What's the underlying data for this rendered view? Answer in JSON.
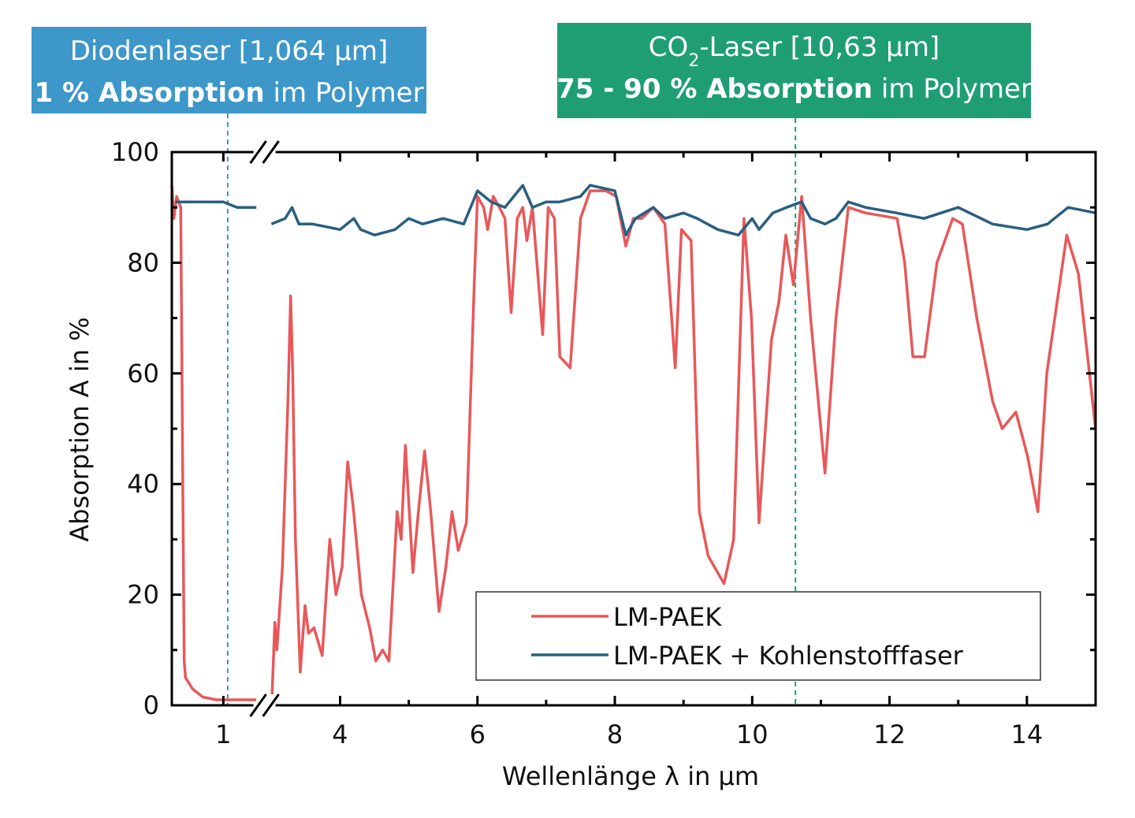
{
  "chart_data": {
    "type": "line",
    "xlabel": "Wellenlänge λ in µm",
    "ylabel": "Absorption A in %",
    "xlim": [
      0.25,
      15
    ],
    "x_break": [
      1.6,
      2.9
    ],
    "ylim": [
      0,
      100
    ],
    "xticks": [
      1,
      4,
      6,
      8,
      10,
      12,
      14
    ],
    "xminor": [
      5,
      7,
      9,
      11,
      13
    ],
    "yticks": [
      0,
      20,
      40,
      60,
      80,
      100
    ],
    "yminor": [
      10,
      30,
      50,
      70,
      90
    ],
    "legend": "lower right",
    "annotations": [
      {
        "x": 1.064,
        "color": "#3d97c9",
        "lines": [
          [
            "Diodenlaser [1,064 µm]"
          ],
          [
            "1 % Absorption",
            " im Polymer"
          ]
        ]
      },
      {
        "x": 10.63,
        "color": "#1f9e73",
        "lines": [
          [
            "CO",
            "2",
            "-Laser [10,63 µm]"
          ],
          [
            "75 - 90 % Absorption",
            " im Polymer"
          ]
        ]
      }
    ],
    "series": [
      {
        "name": "LM-PAEK",
        "color": "#e8585a",
        "x": [
          0.25,
          0.28,
          0.32,
          0.38,
          0.41,
          0.43,
          0.45,
          0.5,
          0.55,
          0.7,
          0.9,
          1.2,
          1.48,
          null,
          3.01,
          3.05,
          3.08,
          3.16,
          3.24,
          3.28,
          3.31,
          3.35,
          3.42,
          3.49,
          3.54,
          3.62,
          3.74,
          3.85,
          3.94,
          4.03,
          4.11,
          4.19,
          4.31,
          4.43,
          4.52,
          4.62,
          4.71,
          4.83,
          4.89,
          4.95,
          5.06,
          5.14,
          5.23,
          5.32,
          5.44,
          5.54,
          5.63,
          5.72,
          5.84,
          5.95,
          6.0,
          6.09,
          6.15,
          6.23,
          6.32,
          6.4,
          6.49,
          6.58,
          6.66,
          6.72,
          6.8,
          6.95,
          7.03,
          7.12,
          7.2,
          7.35,
          7.5,
          7.64,
          7.87,
          8.02,
          8.16,
          8.27,
          8.39,
          8.56,
          8.73,
          8.88,
          8.97,
          9.11,
          9.23,
          9.36,
          9.59,
          9.73,
          9.88,
          9.99,
          10.1,
          10.28,
          10.39,
          10.49,
          10.6,
          10.72,
          10.85,
          11.06,
          11.22,
          11.4,
          11.65,
          12.11,
          12.22,
          12.34,
          12.51,
          12.69,
          12.92,
          13.06,
          13.27,
          13.5,
          13.64,
          13.84,
          14.01,
          14.16,
          14.29,
          14.58,
          14.75,
          15
        ],
        "values": [
          94,
          88,
          92,
          90,
          40,
          8,
          5,
          4,
          3,
          1.5,
          1,
          1,
          1,
          null,
          2,
          15,
          10,
          25,
          55,
          74,
          60,
          30,
          6,
          18,
          13,
          14,
          9,
          30,
          20,
          25,
          44,
          36,
          20,
          14,
          8,
          10,
          8,
          35,
          30,
          47,
          24,
          35,
          46,
          35,
          17,
          25,
          35,
          28,
          33,
          75,
          92,
          90,
          86,
          92,
          90,
          88,
          71,
          88,
          90,
          84,
          90,
          67,
          90,
          88,
          63,
          61,
          88,
          93,
          93,
          92,
          83,
          88,
          88,
          90,
          87,
          61,
          86,
          84,
          35,
          27,
          22,
          30,
          88,
          70,
          33,
          66,
          73,
          85,
          76,
          92,
          70,
          42,
          70,
          90,
          89,
          88,
          80,
          63,
          63,
          80,
          88,
          87,
          70,
          55,
          50,
          53,
          45,
          35,
          60,
          85,
          78,
          50
        ]
      },
      {
        "name": "LM-PAEK + Kohlenstofffaser",
        "color": "#2a5f80",
        "x": [
          0.3,
          0.6,
          1.0,
          1.2,
          1.48,
          null,
          3.0,
          3.2,
          3.3,
          3.4,
          3.6,
          4.0,
          4.2,
          4.3,
          4.5,
          4.8,
          5.0,
          5.2,
          5.5,
          5.8,
          6.0,
          6.2,
          6.4,
          6.66,
          6.8,
          7.0,
          7.2,
          7.5,
          7.64,
          8.0,
          8.16,
          8.3,
          8.56,
          8.73,
          9.0,
          9.2,
          9.5,
          9.8,
          10.0,
          10.1,
          10.3,
          10.5,
          10.72,
          10.85,
          11.06,
          11.22,
          11.4,
          11.65,
          12.1,
          12.5,
          13.0,
          13.5,
          14.0,
          14.3,
          14.6,
          15
        ],
        "values": [
          91,
          91,
          91,
          90,
          90,
          null,
          87,
          88,
          90,
          87,
          87,
          86,
          88,
          86,
          85,
          86,
          88,
          87,
          88,
          87,
          93,
          91,
          90,
          94,
          90,
          91,
          91,
          92,
          94,
          93,
          85,
          88,
          90,
          88,
          89,
          88,
          86,
          85,
          88,
          86,
          89,
          90,
          91,
          88,
          87,
          88,
          91,
          90,
          89,
          88,
          90,
          87,
          86,
          87,
          90,
          89
        ]
      }
    ]
  }
}
